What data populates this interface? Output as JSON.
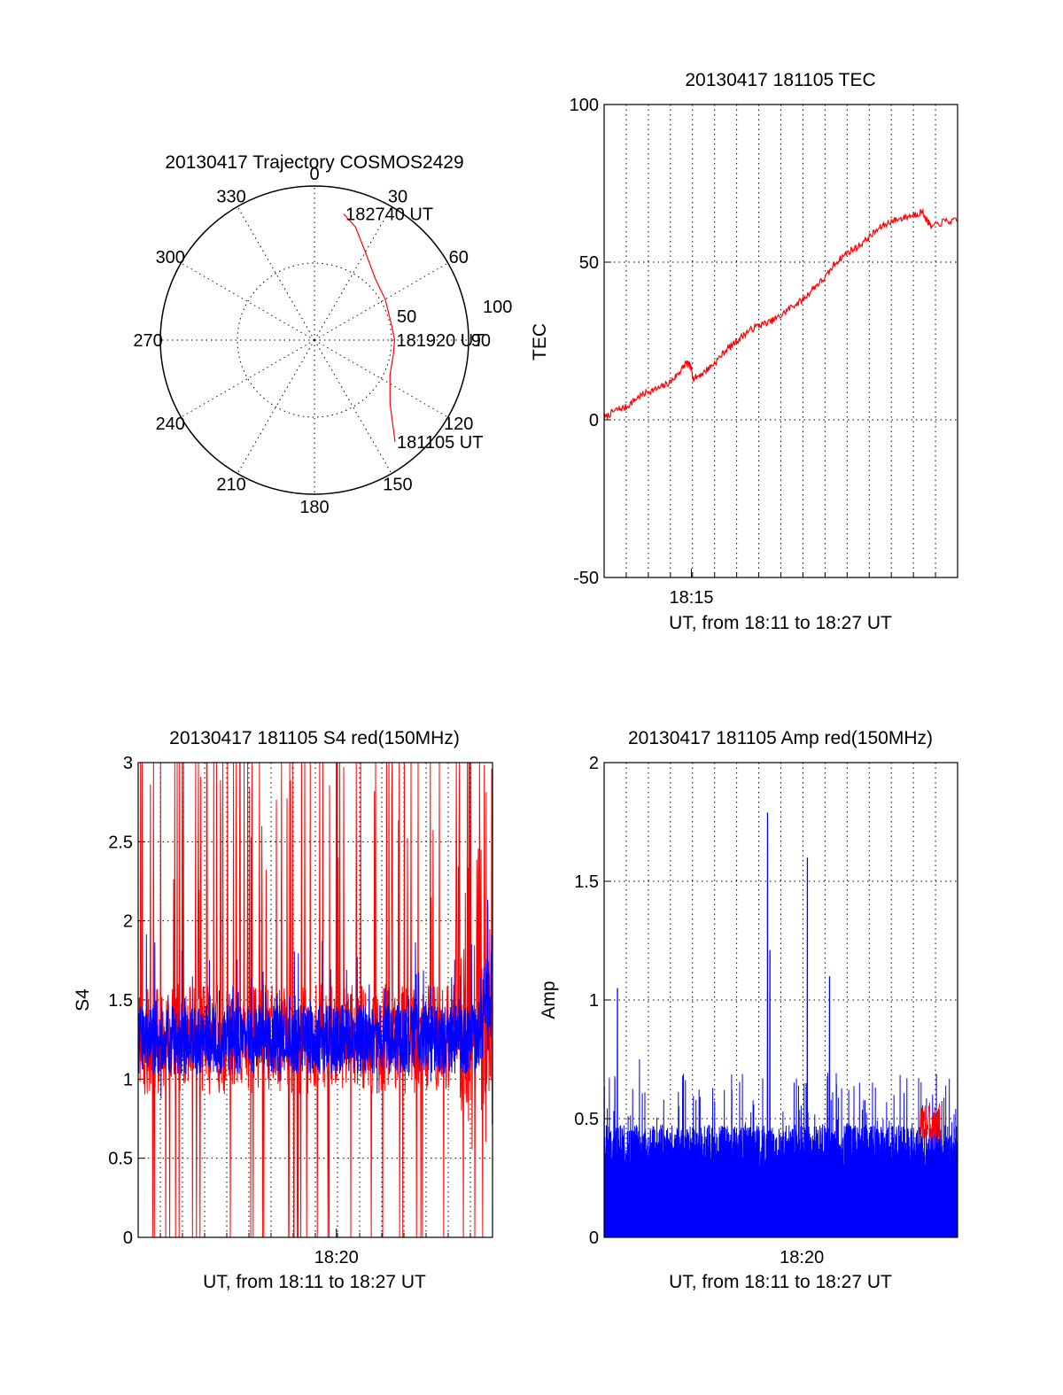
{
  "chart_data": [
    {
      "type": "polar",
      "title": "20130417 Trajectory COSMOS2429",
      "angle_labels": [
        "0",
        "30",
        "60",
        "90",
        "120",
        "150",
        "180",
        "210",
        "240",
        "270",
        "300",
        "330"
      ],
      "radial_labels": [
        "50",
        "100"
      ],
      "series": [
        {
          "color": "#ff0000",
          "points": [
            [
              13.1,
              84.0
            ],
            [
              20,
              78
            ],
            [
              30,
              66
            ],
            [
              45,
              56
            ],
            [
              60,
              53
            ],
            [
              80,
              51
            ],
            [
              90,
              52
            ],
            [
              100,
              52
            ],
            [
              115,
              54
            ],
            [
              130,
              64
            ],
            [
              141.6,
              84.2
            ]
          ]
        }
      ],
      "annotations": [
        {
          "text": "182740 UT",
          "az": 13.1,
          "r": 84
        },
        {
          "text": "181920 UT",
          "az": 90,
          "r": 52
        },
        {
          "text": "181105 UT",
          "az": 141.6,
          "r": 84.2
        }
      ]
    },
    {
      "type": "line",
      "title": "20130417 181105 TEC",
      "xlabel": "UT, from 18:11 to 18:27 UT",
      "ylabel": "TEC",
      "xlim": [
        0,
        16
      ],
      "ylim": [
        -50,
        100
      ],
      "yticks": [
        -50,
        0,
        50,
        100
      ],
      "xticks": [
        {
          "t": 3.95,
          "label": "18:15"
        }
      ],
      "series": [
        {
          "color": "#ff0000",
          "points": [
            [
              0,
              0.5
            ],
            [
              0.5,
              3
            ],
            [
              1,
              4
            ],
            [
              1.5,
              7
            ],
            [
              2,
              9
            ],
            [
              2.5,
              10
            ],
            [
              3,
              12
            ],
            [
              3.4,
              15
            ],
            [
              3.7,
              18
            ],
            [
              3.9,
              17
            ],
            [
              4.05,
              13
            ],
            [
              4.5,
              15
            ],
            [
              5,
              18
            ],
            [
              5.5,
              22
            ],
            [
              6,
              25
            ],
            [
              6.5,
              28
            ],
            [
              7,
              30
            ],
            [
              7.5,
              31
            ],
            [
              8,
              33
            ],
            [
              8.5,
              36
            ],
            [
              9,
              38
            ],
            [
              9.5,
              42
            ],
            [
              10,
              45
            ],
            [
              10.5,
              50
            ],
            [
              11,
              53
            ],
            [
              11.5,
              55
            ],
            [
              12,
              58
            ],
            [
              12.5,
              61
            ],
            [
              13,
              63
            ],
            [
              13.5,
              64
            ],
            [
              14,
              65
            ],
            [
              14.4,
              66
            ],
            [
              14.8,
              61
            ],
            [
              15.4,
              63
            ],
            [
              16,
              63
            ]
          ]
        }
      ]
    },
    {
      "type": "line",
      "title": "20130417 181105 S4 red(150MHz)",
      "xlabel": "UT, from 18:11 to 18:27 UT",
      "ylabel": "S4",
      "xlim": [
        0,
        16
      ],
      "ylim": [
        0,
        3
      ],
      "yticks": [
        0,
        0.5,
        1,
        1.5,
        2,
        2.5,
        3
      ],
      "xticks": [
        {
          "t": 8.95,
          "label": "18:20"
        }
      ],
      "series": [
        {
          "color": "#ff0000",
          "baseline": 1.25,
          "spread": 0.35
        },
        {
          "color": "#0000ff",
          "baseline": 1.25,
          "spread": 0.22
        }
      ]
    },
    {
      "type": "line",
      "title": "20130417 181105 Amp red(150MHz)",
      "xlabel": "UT, from 18:11 to 18:27 UT",
      "ylabel": "Amp",
      "xlim": [
        0,
        16
      ],
      "ylim": [
        0,
        2
      ],
      "yticks": [
        0,
        0.5,
        1,
        1.5,
        2
      ],
      "xticks": [
        {
          "t": 8.95,
          "label": "18:20"
        }
      ],
      "series": [
        {
          "color": "#0000ff",
          "level": 0.45,
          "peaks": [
            [
              7.4,
              1.79
            ],
            [
              7.5,
              1.21
            ],
            [
              9.2,
              1.6
            ],
            [
              10.2,
              1.1
            ],
            [
              0.6,
              1.05
            ],
            [
              1.6,
              0.75
            ]
          ]
        },
        {
          "color": "#ff0000",
          "range": [
            14.3,
            15.2
          ],
          "level": 0.48
        }
      ]
    }
  ]
}
